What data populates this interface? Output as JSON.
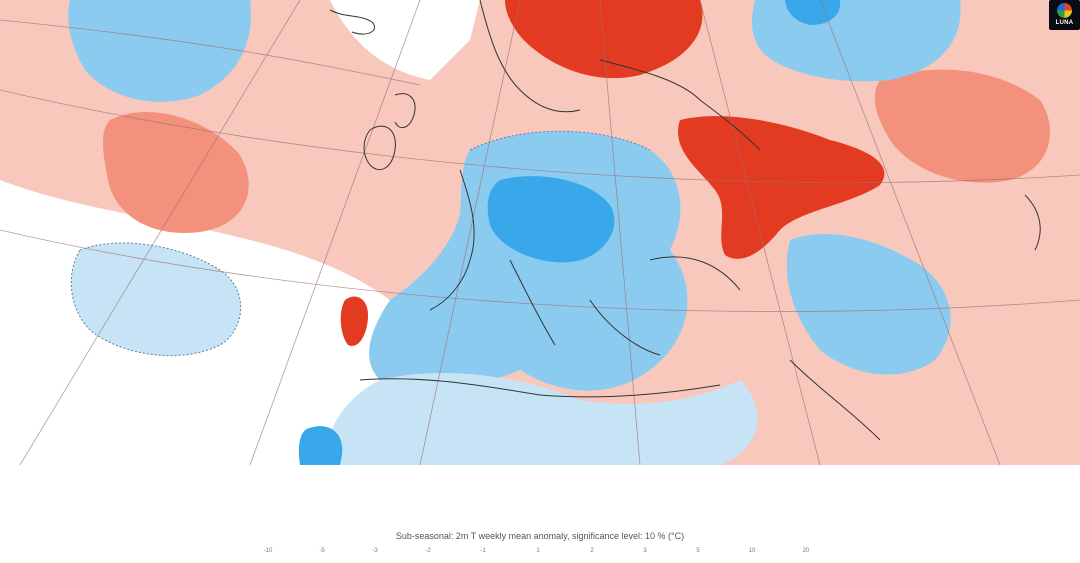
{
  "map": {
    "title": "Sub-seasonal: 2m T weekly mean anomaly, significance level: 10 % (°C)",
    "colors": {
      "strong_warm": "#e33a22",
      "moderate_warm": "#f3917c",
      "weak_warm": "#f8c8bd",
      "neutral": "#ffffff",
      "weak_cold": "#c7e4f7",
      "moderate_cold": "#8ccbf0",
      "strong_cold": "#38a8ea",
      "coastline": "#333333",
      "graticule": "#9a7070"
    },
    "scale_labels": [
      "-10",
      "-5",
      "-3",
      "-2",
      "-1",
      "1",
      "2",
      "3",
      "5",
      "10",
      "20"
    ]
  },
  "logo": {
    "label": "LUNA"
  }
}
